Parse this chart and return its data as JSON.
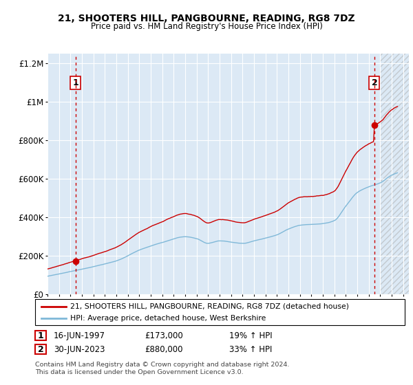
{
  "title": "21, SHOOTERS HILL, PANGBOURNE, READING, RG8 7DZ",
  "subtitle": "Price paid vs. HM Land Registry's House Price Index (HPI)",
  "legend_line1": "21, SHOOTERS HILL, PANGBOURNE, READING, RG8 7DZ (detached house)",
  "legend_line2": "HPI: Average price, detached house, West Berkshire",
  "table_row1": [
    "1",
    "16-JUN-1997",
    "£173,000",
    "19% ↑ HPI"
  ],
  "table_row2": [
    "2",
    "30-JUN-2023",
    "£880,000",
    "33% ↑ HPI"
  ],
  "footnote": "Contains HM Land Registry data © Crown copyright and database right 2024.\nThis data is licensed under the Open Government Licence v3.0.",
  "sale1_year": 1997.46,
  "sale1_price": 173000,
  "sale2_year": 2023.5,
  "sale2_price": 880000,
  "hpi_color": "#7fb8d8",
  "price_color": "#cc0000",
  "dashed_color": "#cc0000",
  "background_color": "#dce9f5",
  "plot_bg_color": "#dce9f5",
  "ylim": [
    0,
    1250000
  ],
  "yticks": [
    0,
    200000,
    400000,
    600000,
    800000,
    1000000,
    1200000
  ],
  "xlim_start": 1995.0,
  "xlim_end": 2026.5,
  "grid_color": "#ffffff",
  "marker_color": "#cc0000",
  "hatch_start": 2024.0
}
